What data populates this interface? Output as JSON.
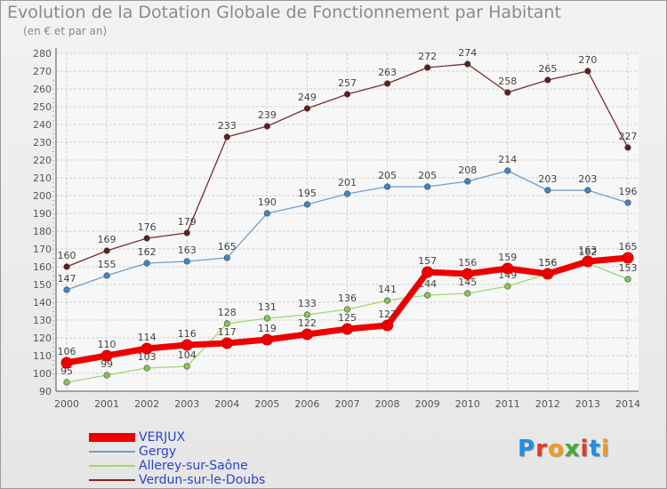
{
  "title": "Evolution de la Dotation Globale de Fonctionnement par Habitant",
  "subtitle": "(en € et par an)",
  "logo": {
    "text": "Proxiti",
    "colors": [
      "#1f8fe0",
      "#e23b2b",
      "#f29a1f",
      "#4aa836",
      "#e23b2b",
      "#1f8fe0",
      "#f29a1f"
    ]
  },
  "chart_data": {
    "type": "line",
    "x": [
      "2000",
      "2001",
      "2002",
      "2003",
      "2004",
      "2005",
      "2006",
      "2007",
      "2008",
      "2009",
      "2010",
      "2011",
      "2012",
      "2013",
      "2014"
    ],
    "ylim": [
      90,
      280
    ],
    "yticks": [
      90,
      100,
      110,
      120,
      130,
      140,
      150,
      160,
      170,
      180,
      190,
      200,
      210,
      220,
      230,
      240,
      250,
      260,
      270,
      280
    ],
    "grid": true,
    "legend_position": "bottom-left",
    "series": [
      {
        "name": "VERJUX",
        "color": "#ee0000",
        "marker": "#ee0000",
        "width": 7,
        "values": [
          106,
          110,
          114,
          116,
          117,
          119,
          122,
          125,
          127,
          157,
          156,
          159,
          156,
          163,
          165
        ]
      },
      {
        "name": "Gergy",
        "color": "#6aa0d0",
        "marker": "#3f86c8",
        "width": 1.3,
        "values": [
          147,
          155,
          162,
          163,
          165,
          190,
          195,
          201,
          205,
          205,
          208,
          214,
          203,
          203,
          196
        ]
      },
      {
        "name": "Allerey-sur-Saône",
        "color": "#9fd86a",
        "marker": "#86c84f",
        "width": 1.3,
        "values": [
          95,
          99,
          103,
          104,
          128,
          131,
          133,
          136,
          141,
          144,
          145,
          149,
          156,
          162,
          153
        ]
      },
      {
        "name": "Verdun-sur-le-Doubs",
        "color": "#7a2a2a",
        "marker": "#5e1f1f",
        "width": 1.3,
        "values": [
          160,
          169,
          176,
          179,
          233,
          239,
          249,
          257,
          263,
          272,
          274,
          258,
          265,
          270,
          227
        ]
      }
    ]
  }
}
